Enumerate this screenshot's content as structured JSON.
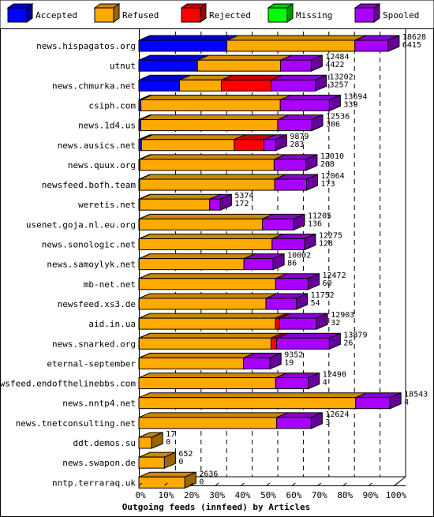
{
  "chart_data": {
    "type": "bar",
    "orientation": "horizontal",
    "stacked": true,
    "xlabel": "Outgoing feeds (innfeed) by Articles",
    "xlim": [
      0,
      100
    ],
    "xunit": "%",
    "xticks": [
      "0%",
      "10%",
      "20%",
      "30%",
      "40%",
      "50%",
      "60%",
      "70%",
      "80%",
      "90%",
      "100%"
    ],
    "legend": [
      {
        "name": "Accepted",
        "color": "#0000ff"
      },
      {
        "name": "Refused",
        "color": "#ffaa00"
      },
      {
        "name": "Rejected",
        "color": "#ff0000"
      },
      {
        "name": "Missing",
        "color": "#00ff00"
      },
      {
        "name": "Spooled",
        "color": "#aa00ff"
      }
    ],
    "legend_position": "top",
    "categories": [
      "news.hispagatos.org",
      "utnut",
      "news.chmurka.net",
      "csiph.com",
      "news.1d4.us",
      "news.ausics.net",
      "news.quux.org",
      "newsfeed.bofh.team",
      "weretis.net",
      "usenet.goja.nl.eu.org",
      "news.sonologic.net",
      "news.samoylyk.net",
      "mb-net.net",
      "newsfeed.xs3.de",
      "aid.in.ua",
      "news.snarked.org",
      "eternal-september",
      "newsfeed.endofthelinebbs.com",
      "news.nntp4.net",
      "news.tnetconsulting.net",
      "ddt.demos.su",
      "news.swapon.de",
      "nntp.terraraq.uk"
    ],
    "offered": [
      "18628",
      "12484",
      "13202",
      "13694",
      "12536",
      "9879",
      "12010",
      "12064",
      "5374",
      "11205",
      "12275",
      "10002",
      "12472",
      "11752",
      "12903",
      "13879",
      "9352",
      "12490",
      "18543",
      "12624",
      "17",
      "652",
      "2636"
    ],
    "accepted_count": [
      "6415",
      "4422",
      "3257",
      "339",
      "306",
      "283",
      "208",
      "173",
      "172",
      "136",
      "128",
      "86",
      "60",
      "54",
      "32",
      "26",
      "19",
      "4",
      "4",
      "3",
      "0",
      "0",
      "0"
    ],
    "series": [
      {
        "name": "Accepted",
        "values": [
          34.4,
          22.9,
          15.9,
          0.8,
          0.7,
          1.0,
          0.4,
          0.3,
          0.3,
          0.2,
          0.1,
          0.1,
          0.1,
          0.1,
          0.1,
          0.1,
          0.1,
          0.0,
          0.0,
          0.0,
          0.0,
          0.0,
          0.0
        ]
      },
      {
        "name": "Refused",
        "values": [
          50.1,
          32.5,
          16.4,
          54.5,
          53.6,
          36.3,
          52.5,
          52.8,
          27.4,
          48.1,
          52.0,
          41.0,
          53.4,
          49.6,
          53.3,
          51.6,
          40.8,
          53.5,
          84.8,
          53.9,
          5.0,
          10.0,
          18.0
        ]
      },
      {
        "name": "Rejected",
        "values": [
          0,
          0,
          19.5,
          0,
          0,
          11.6,
          0,
          0,
          0,
          0,
          0,
          0,
          0,
          0,
          1.6,
          2.2,
          0,
          0,
          0,
          0,
          0,
          0,
          0
        ]
      },
      {
        "name": "Missing",
        "values": [
          0,
          0,
          0,
          0,
          0,
          0,
          0,
          0,
          0,
          0,
          0,
          0,
          0,
          0,
          0,
          0,
          0,
          0,
          0,
          0,
          0,
          0,
          0
        ]
      },
      {
        "name": "Spooled",
        "values": [
          13.0,
          12.0,
          17.2,
          19.2,
          13.3,
          4.6,
          12.5,
          12.5,
          4.2,
          12.2,
          12.7,
          11.4,
          12.7,
          11.9,
          14.5,
          20.6,
          10.4,
          12.8,
          13.4,
          13.5,
          0,
          0,
          0
        ]
      }
    ],
    "grid": true
  }
}
